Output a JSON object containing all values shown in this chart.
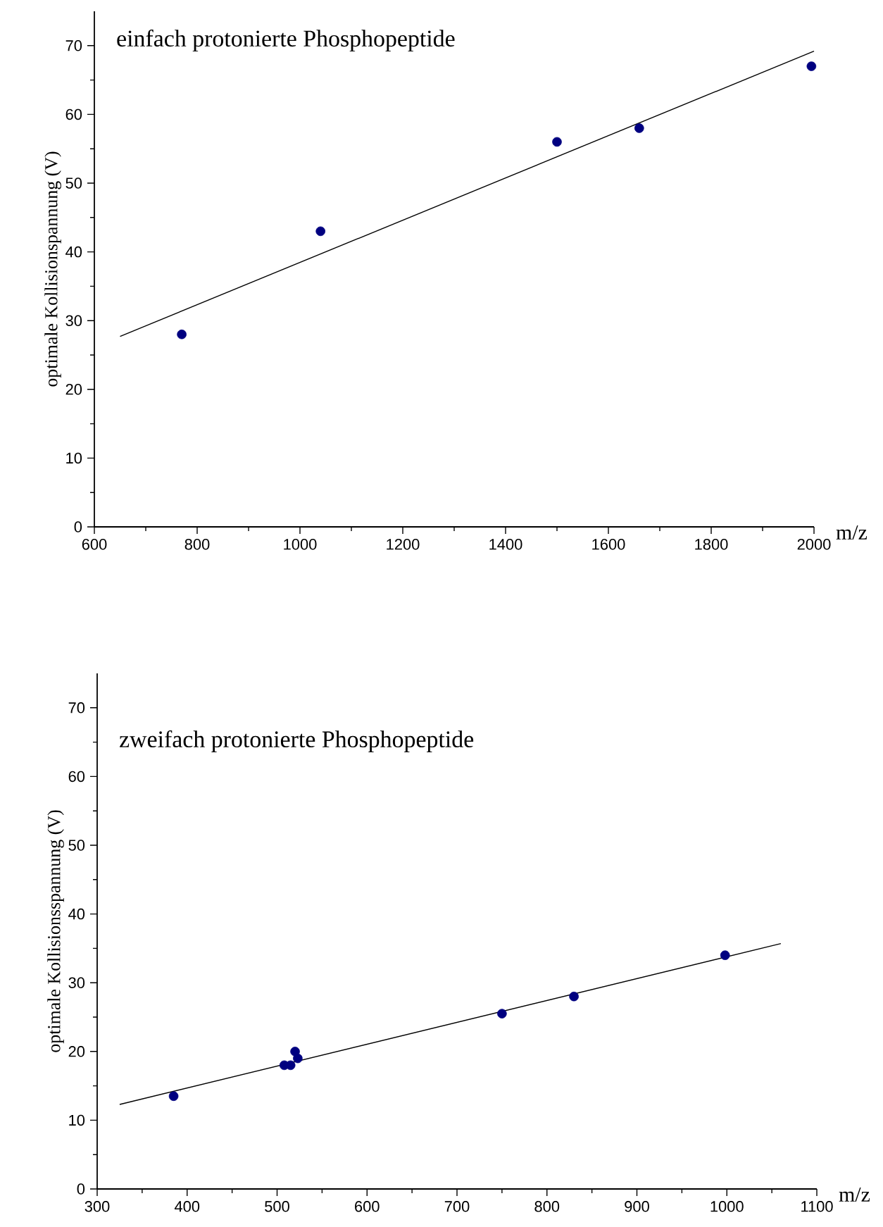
{
  "chart_data": [
    {
      "type": "scatter",
      "title": "einfach protonierte Phosphopeptide",
      "xlabel": "m/z",
      "ylabel": "optimale Kollisionspannung (V)",
      "xlim": [
        600,
        2000
      ],
      "ylim": [
        0,
        75
      ],
      "xticks": [
        600,
        800,
        1000,
        1200,
        1400,
        1600,
        1800,
        2000
      ],
      "yticks": [
        0,
        10,
        20,
        30,
        40,
        50,
        60,
        70
      ],
      "series": [
        {
          "type": "scatter",
          "marker": "circle",
          "color": "#000080",
          "x": [
            770,
            1040,
            1500,
            1660,
            1995
          ],
          "values": [
            28,
            43,
            56,
            58,
            67
          ]
        },
        {
          "type": "line",
          "color": "#000000",
          "x": [
            650,
            2000
          ],
          "values": [
            27.7,
            69.2
          ]
        }
      ]
    },
    {
      "type": "scatter",
      "title": "zweifach protonierte Phosphopeptide",
      "xlabel": "m/z",
      "ylabel": "optimale Kollisionsspannung (V)",
      "xlim": [
        300,
        1100
      ],
      "ylim": [
        0,
        75
      ],
      "xticks": [
        300,
        400,
        500,
        600,
        700,
        800,
        900,
        1000,
        1100
      ],
      "yticks": [
        0,
        10,
        20,
        30,
        40,
        50,
        60,
        70
      ],
      "series": [
        {
          "type": "scatter",
          "marker": "circle",
          "color": "#000080",
          "x": [
            385,
            508,
            515,
            520,
            523,
            750,
            830,
            998
          ],
          "values": [
            13.5,
            18,
            18,
            20,
            19,
            25.5,
            28,
            34
          ]
        },
        {
          "type": "line",
          "color": "#000000",
          "x": [
            325,
            1060
          ],
          "values": [
            12.3,
            35.7
          ]
        }
      ]
    }
  ]
}
